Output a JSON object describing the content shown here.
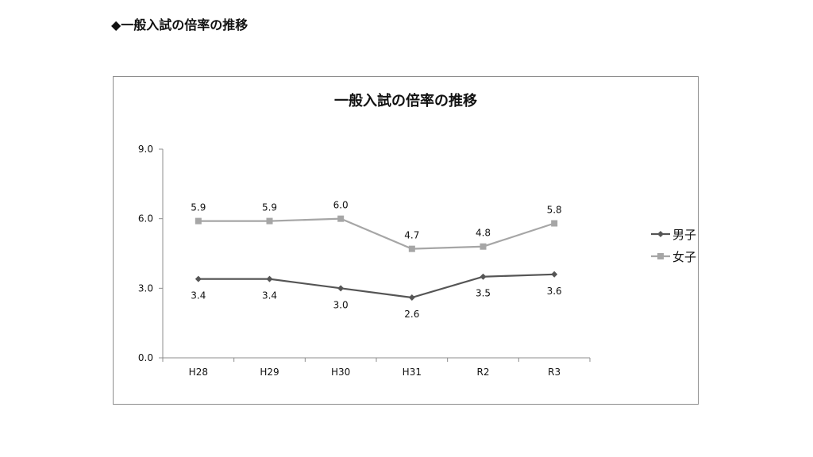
{
  "heading": "◆一般入試の倍率の推移",
  "chart_data": {
    "type": "line",
    "title": "一般入試の倍率の推移",
    "categories": [
      "H28",
      "H29",
      "H30",
      "H31",
      "R2",
      "R3"
    ],
    "ylim": [
      0,
      9
    ],
    "yticks": [
      0,
      3,
      6,
      9
    ],
    "ytick_labels": [
      "0.0",
      "3.0",
      "6.0",
      "9.0"
    ],
    "grid": false,
    "legend_position": "right",
    "series": [
      {
        "name": "男子",
        "values": [
          3.4,
          3.4,
          3.0,
          2.6,
          3.5,
          3.6
        ],
        "labels": [
          "3.4",
          "3.4",
          "3.0",
          "2.6",
          "3.5",
          "3.6"
        ],
        "color": "#555555",
        "marker": "diamond",
        "label_position": "below"
      },
      {
        "name": "女子",
        "values": [
          5.9,
          5.9,
          6.0,
          4.7,
          4.8,
          5.8
        ],
        "labels": [
          "5.9",
          "5.9",
          "6.0",
          "4.7",
          "4.8",
          "5.8"
        ],
        "color": "#a6a6a6",
        "marker": "square",
        "label_position": "above"
      }
    ]
  }
}
